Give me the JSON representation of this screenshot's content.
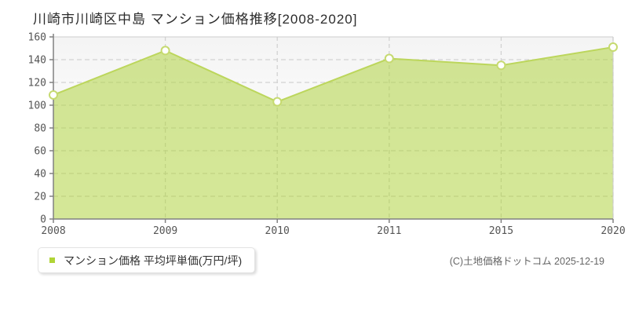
{
  "title": "川崎市川崎区中島 マンション価格推移[2008-2020]",
  "legend": {
    "marker_color": "#b0d437",
    "label": "マンション価格 平均坪単価(万円/坪)"
  },
  "footer": {
    "copyright": "(C)土地価格ドットコム 2025-12-19"
  },
  "colors": {
    "line": "#bcd65c",
    "area_fill": "rgba(176,212,66,0.55)",
    "marker_fill": "#ffffff",
    "marker_stroke": "#c6da70",
    "grid": "#d2d2d2",
    "axis": "#808080",
    "frame": "#cccccc",
    "tick_label": "#555555",
    "plot_bg_top": "#f4f4f4",
    "plot_bg_bottom": "#ffffff"
  },
  "chart_data": {
    "type": "area",
    "categories": [
      "2008",
      "2009",
      "2010",
      "2011",
      "2015",
      "2020"
    ],
    "values": [
      109,
      148,
      103,
      141,
      135,
      151
    ],
    "series_name": "マンション価格 平均坪単価(万円/坪)",
    "title": "川崎市川崎区中島 マンション価格推移[2008-2020]",
    "xlabel": "",
    "ylabel": "",
    "ylim": [
      0,
      160
    ],
    "ytick_step": 20,
    "grid": true,
    "legend_position": "bottom-left",
    "unit": "万円/坪"
  }
}
